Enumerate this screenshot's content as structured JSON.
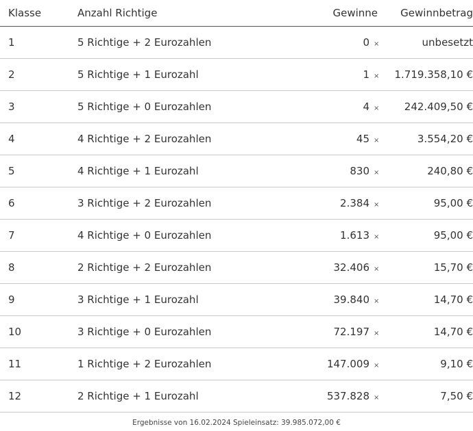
{
  "table": {
    "headers": {
      "klasse": "Klasse",
      "richtige": "Anzahl Richtige",
      "gewinne": "Gewinne",
      "betrag": "Gewinnbetrag"
    },
    "times_symbol": "×",
    "rows": [
      {
        "klasse": "1",
        "richtige": "5 Richtige + 2 Eurozahlen",
        "gewinne": "0",
        "betrag": "unbesetzt"
      },
      {
        "klasse": "2",
        "richtige": "5 Richtige + 1 Eurozahl",
        "gewinne": "1",
        "betrag": "1.719.358,10 €"
      },
      {
        "klasse": "3",
        "richtige": "5 Richtige + 0 Eurozahlen",
        "gewinne": "4",
        "betrag": "242.409,50 €"
      },
      {
        "klasse": "4",
        "richtige": "4 Richtige + 2 Eurozahlen",
        "gewinne": "45",
        "betrag": "3.554,20 €"
      },
      {
        "klasse": "5",
        "richtige": "4 Richtige + 1 Eurozahl",
        "gewinne": "830",
        "betrag": "240,80 €"
      },
      {
        "klasse": "6",
        "richtige": "3 Richtige + 2 Eurozahlen",
        "gewinne": "2.384",
        "betrag": "95,00 €"
      },
      {
        "klasse": "7",
        "richtige": "4 Richtige + 0 Eurozahlen",
        "gewinne": "1.613",
        "betrag": "95,00 €"
      },
      {
        "klasse": "8",
        "richtige": "2 Richtige + 2 Eurozahlen",
        "gewinne": "32.406",
        "betrag": "15,70 €"
      },
      {
        "klasse": "9",
        "richtige": "3 Richtige + 1 Eurozahl",
        "gewinne": "39.840",
        "betrag": "14,70 €"
      },
      {
        "klasse": "10",
        "richtige": "3 Richtige + 0 Eurozahlen",
        "gewinne": "72.197",
        "betrag": "14,70 €"
      },
      {
        "klasse": "11",
        "richtige": "1 Richtige + 2 Eurozahlen",
        "gewinne": "147.009",
        "betrag": "9,10 €"
      },
      {
        "klasse": "12",
        "richtige": "2 Richtige + 1 Eurozahl",
        "gewinne": "537.828",
        "betrag": "7,50 €"
      }
    ]
  },
  "footer": {
    "text": "Ergebnisse von 16.02.2024 Spieleinsatz: 39.985.072,00 €"
  }
}
